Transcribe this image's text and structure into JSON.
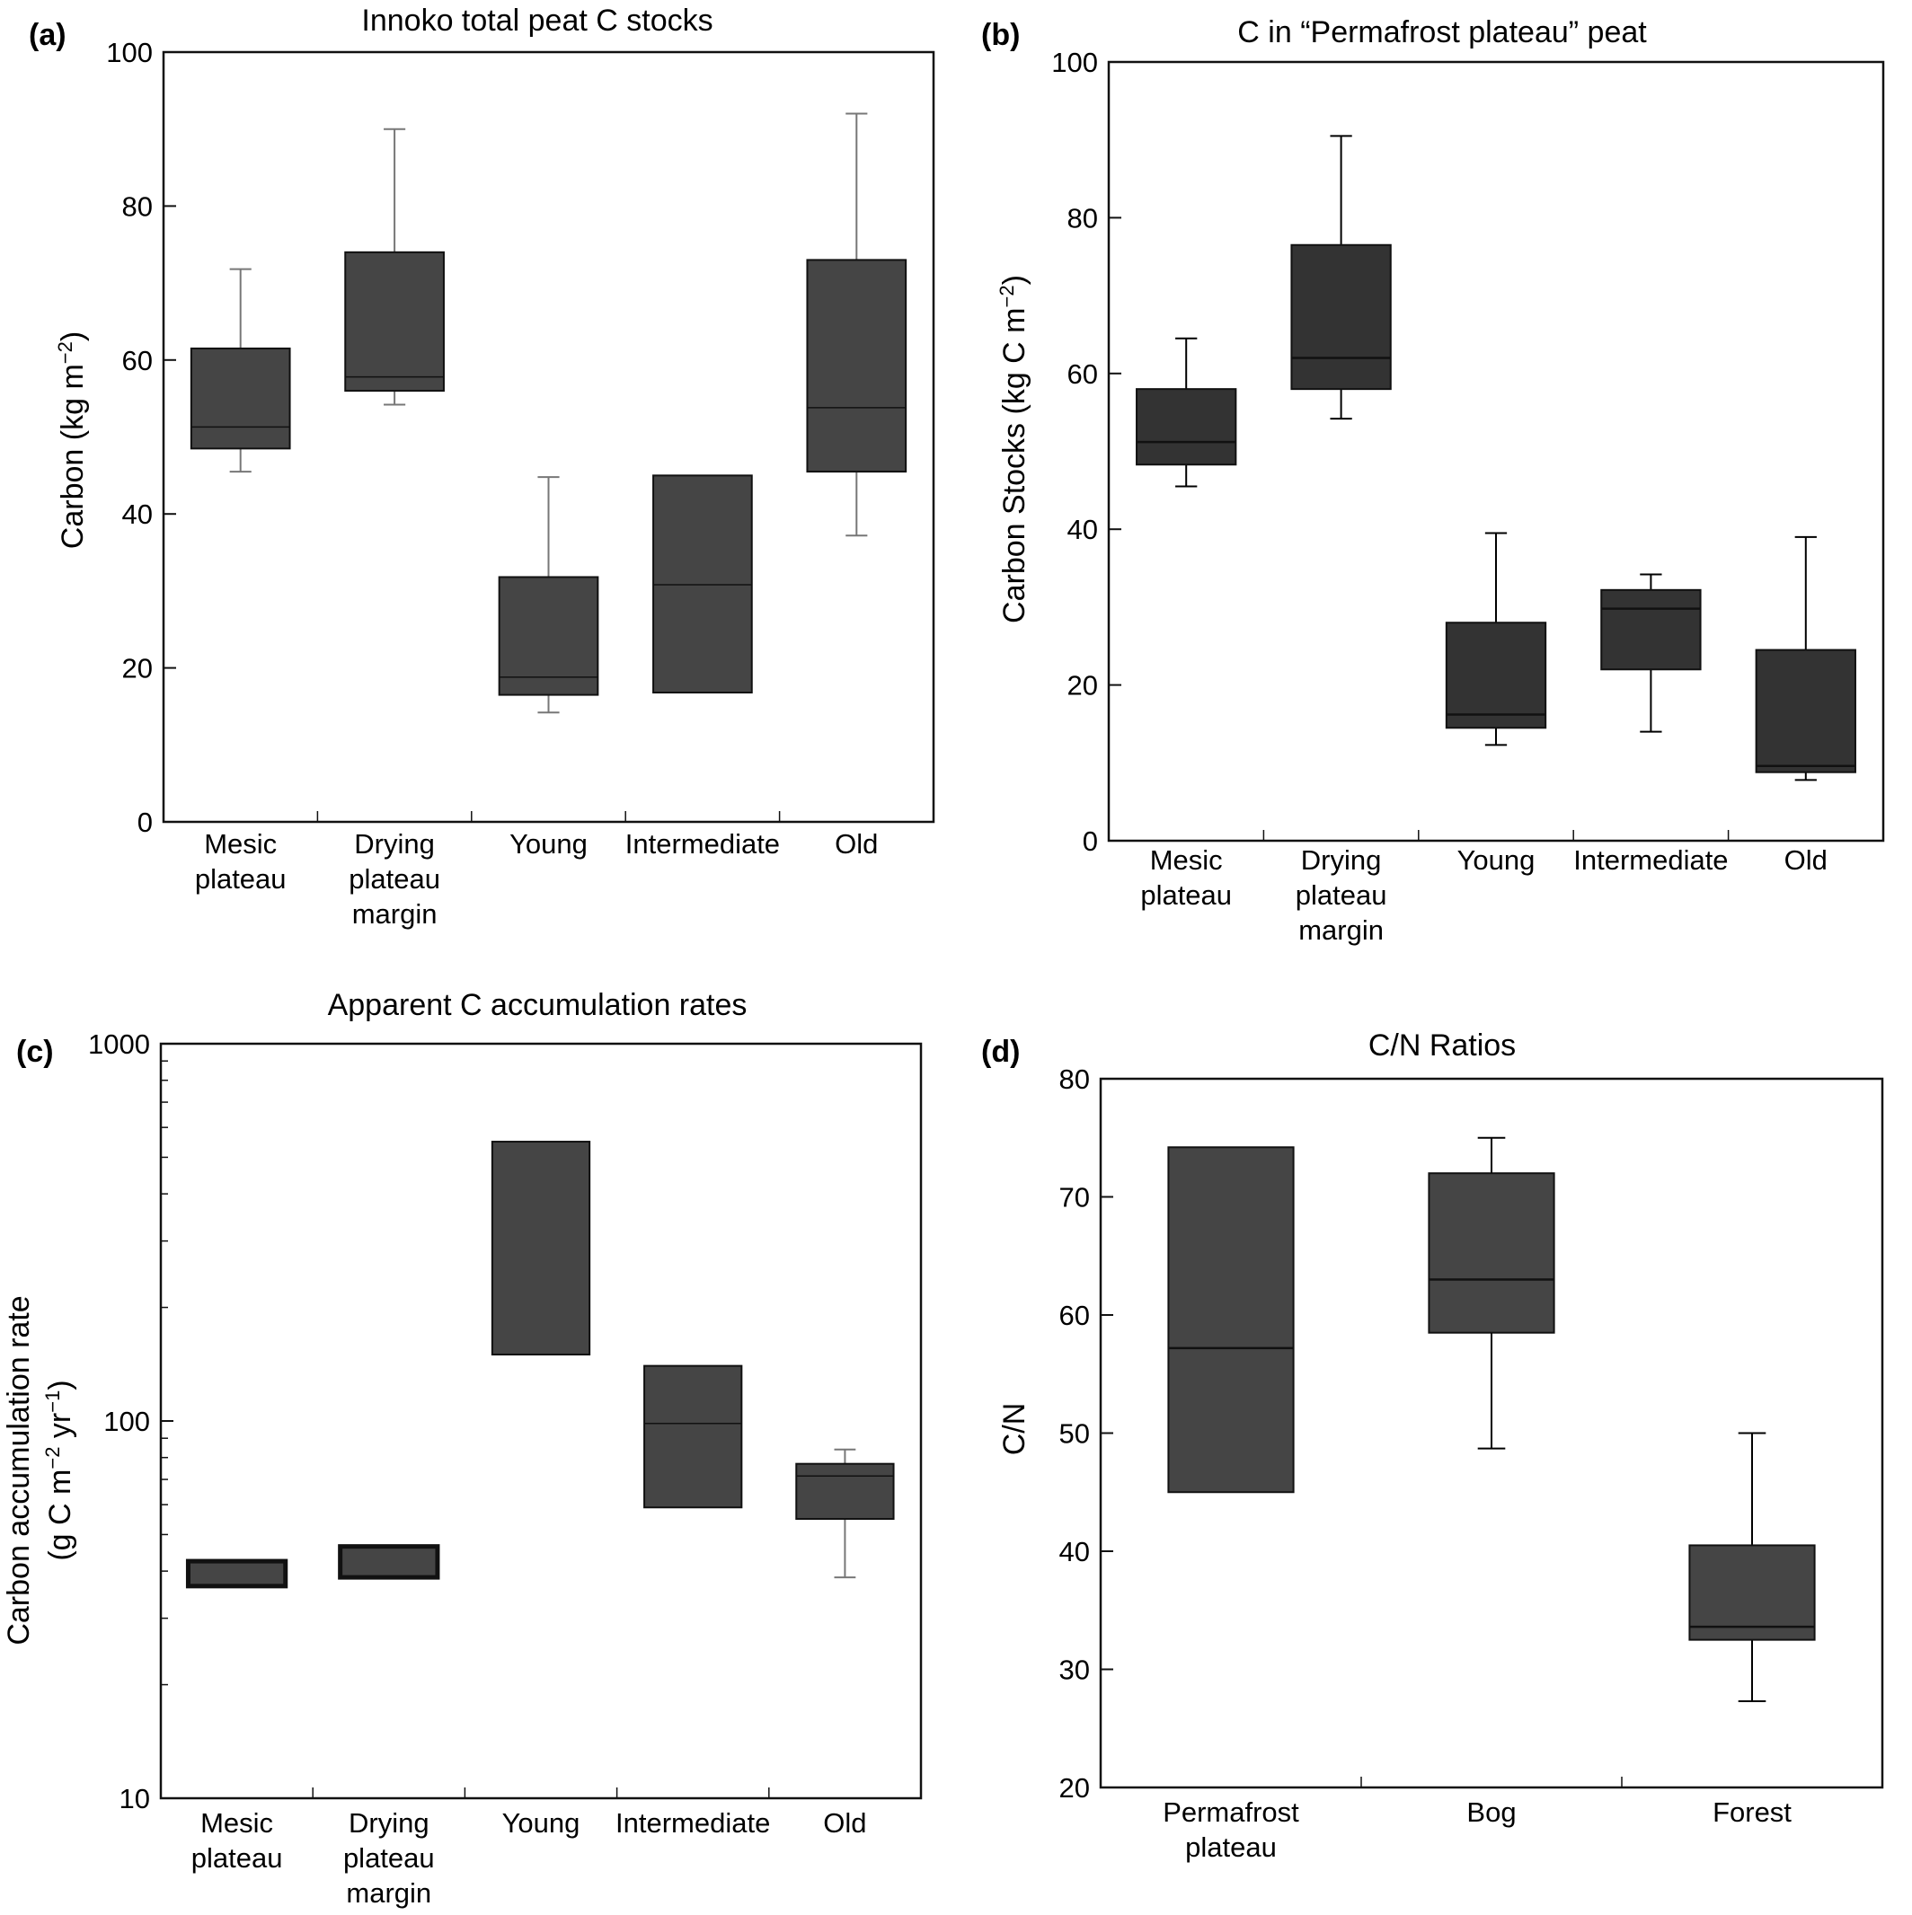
{
  "chart_data": [
    {
      "panel": "(a)",
      "type": "box",
      "title": "Innoko total peat C stocks",
      "ylabel": "Carbon (kg m−2)",
      "ylim": [
        0,
        100
      ],
      "yticks": [
        0,
        20,
        40,
        60,
        80,
        100
      ],
      "yscale": "linear",
      "categories": [
        "Mesic plateau",
        "Drying plateau margin",
        "Young",
        "Intermediate",
        "Old"
      ],
      "category_lines": [
        [
          "Mesic",
          "plateau"
        ],
        [
          "Drying",
          "plateau",
          "margin"
        ],
        [
          "Young"
        ],
        [
          "Intermediate"
        ],
        [
          "Old"
        ]
      ],
      "boxes": [
        {
          "whisker_low": 45.5,
          "q1": 48.5,
          "median": 51.3,
          "q3": 61.5,
          "whisker_high": 71.8
        },
        {
          "whisker_low": 54.2,
          "q1": 56.0,
          "median": 57.8,
          "q3": 74.0,
          "whisker_high": 90.0
        },
        {
          "whisker_low": 14.2,
          "q1": 16.5,
          "median": 18.8,
          "q3": 31.8,
          "whisker_high": 44.8
        },
        {
          "whisker_low": 16.8,
          "q1": 16.8,
          "median": 30.8,
          "q3": 45.0,
          "whisker_high": 45.0
        },
        {
          "whisker_low": 37.2,
          "q1": 45.5,
          "median": 53.8,
          "q3": 73.0,
          "whisker_high": 92.0
        }
      ],
      "box_color": "#454545",
      "whisker_color": "#777777"
    },
    {
      "panel": "(b)",
      "type": "box",
      "title": "C in “Permafrost plateau” peat",
      "ylabel": "Carbon Stocks (kg C m−2)",
      "ylim": [
        0,
        100
      ],
      "yticks": [
        0,
        20,
        40,
        60,
        80,
        100
      ],
      "yscale": "linear",
      "categories": [
        "Mesic plateau",
        "Drying plateau margin",
        "Young",
        "Intermediate",
        "Old"
      ],
      "category_lines": [
        [
          "Mesic",
          "plateau"
        ],
        [
          "Drying",
          "plateau",
          "margin"
        ],
        [
          "Young"
        ],
        [
          "Intermediate"
        ],
        [
          "Old"
        ]
      ],
      "boxes": [
        {
          "whisker_low": 45.5,
          "q1": 48.3,
          "median": 51.2,
          "q3": 58.0,
          "whisker_high": 64.5
        },
        {
          "whisker_low": 54.2,
          "q1": 58.0,
          "median": 62.0,
          "q3": 76.5,
          "whisker_high": 90.5
        },
        {
          "whisker_low": 12.3,
          "q1": 14.5,
          "median": 16.2,
          "q3": 28.0,
          "whisker_high": 39.5
        },
        {
          "whisker_low": 14.0,
          "q1": 22.0,
          "median": 29.8,
          "q3": 32.2,
          "whisker_high": 34.2
        },
        {
          "whisker_low": 7.8,
          "q1": 8.8,
          "median": 9.6,
          "q3": 24.5,
          "whisker_high": 39.0
        }
      ],
      "box_color": "#333333",
      "whisker_color": "#000000"
    },
    {
      "panel": "(c)",
      "type": "box",
      "title": "Apparent C accumulation rates",
      "ylabel": "Carbon accumulation rate (g C m−2 yr−1)",
      "ylabel_lines": [
        "Carbon accumulation rate",
        "(g C m−2 yr−1)"
      ],
      "ylim": [
        10,
        1000
      ],
      "yticks": [
        10,
        100,
        1000
      ],
      "yscale": "log",
      "categories": [
        "Mesic plateau",
        "Drying plateau margin",
        "Young",
        "Intermediate",
        "Old"
      ],
      "category_lines": [
        [
          "Mesic",
          "plateau"
        ],
        [
          "Drying",
          "plateau",
          "margin"
        ],
        [
          "Young"
        ],
        [
          "Intermediate"
        ],
        [
          "Old"
        ]
      ],
      "boxes": [
        {
          "whisker_low": 36.5,
          "q1": 36.5,
          "median": 36.5,
          "q3": 42.5,
          "whisker_high": 42.5
        },
        {
          "whisker_low": 38.5,
          "q1": 38.5,
          "median": 38.5,
          "q3": 46.5,
          "whisker_high": 46.5
        },
        {
          "whisker_low": 150,
          "q1": 150,
          "median": 150,
          "q3": 550,
          "whisker_high": 550
        },
        {
          "whisker_low": 59,
          "q1": 59,
          "median": 98.5,
          "q3": 140,
          "whisker_high": 140
        },
        {
          "whisker_low": 38.5,
          "q1": 55,
          "median": 71.5,
          "q3": 77,
          "whisker_high": 84
        }
      ],
      "box_color": "#454545",
      "whisker_color": "#777777"
    },
    {
      "panel": "(d)",
      "type": "box",
      "title": "C/N Ratios",
      "ylabel": "C/N",
      "ylim": [
        20,
        80
      ],
      "yticks": [
        20,
        30,
        40,
        50,
        60,
        70,
        80
      ],
      "yscale": "linear",
      "categories": [
        "Permafrost plateau",
        "Bog",
        "Forest"
      ],
      "category_lines": [
        [
          "Permafrost",
          "plateau"
        ],
        [
          "Bog"
        ],
        [
          "Forest"
        ]
      ],
      "boxes": [
        {
          "whisker_low": 45.0,
          "q1": 45.0,
          "median": 57.2,
          "q3": 74.2,
          "whisker_high": 74.2
        },
        {
          "whisker_low": 48.7,
          "q1": 58.5,
          "median": 63.0,
          "q3": 72.0,
          "whisker_high": 75.0
        },
        {
          "whisker_low": 27.3,
          "q1": 32.5,
          "median": 33.6,
          "q3": 40.5,
          "whisker_high": 50.0
        }
      ],
      "box_color": "#454545",
      "whisker_color": "#000000"
    }
  ]
}
